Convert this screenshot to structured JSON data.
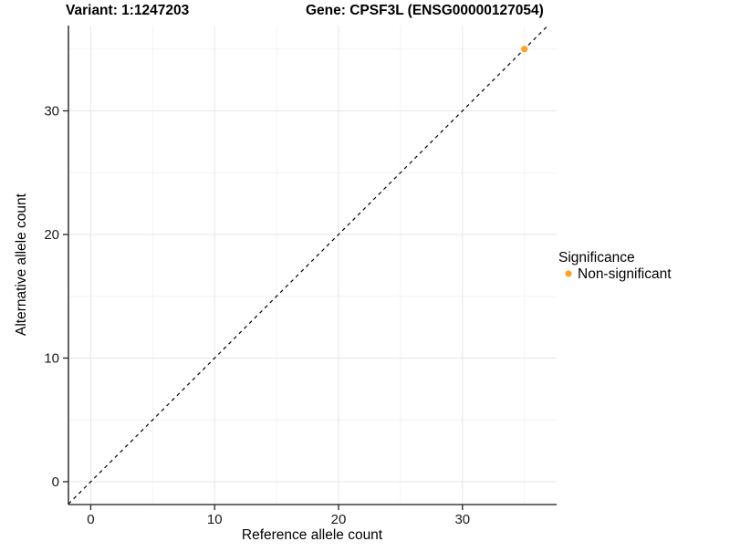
{
  "chart_data": {
    "type": "scatter",
    "title_left": "Variant: 1:1247203",
    "title_right": "Gene: CPSF3L (ENSG00000127054)",
    "xlabel": "Reference allele count",
    "ylabel": "Alternative allele count",
    "xlim": [
      -1.8,
      37.6
    ],
    "ylim": [
      -1.85,
      36.9
    ],
    "xticks": [
      0,
      10,
      20,
      30
    ],
    "yticks": [
      0,
      10,
      20,
      30
    ],
    "xminor": [
      5,
      15,
      25,
      35
    ],
    "yminor": [
      5,
      15,
      25,
      35
    ],
    "grid": "major and minor gridlines, white panel",
    "identity_line": {
      "equation": "y = x",
      "style": "dashed",
      "color": "#000000"
    },
    "series": [
      {
        "name": "Non-significant",
        "color": "#FFA320",
        "points": [
          [
            35,
            35
          ]
        ]
      }
    ],
    "legend": {
      "title": "Significance",
      "position": "right",
      "items": [
        {
          "label": "Non-significant",
          "color": "#FFA320"
        }
      ]
    }
  },
  "colors": {
    "background": "#ffffff",
    "axis_line": "#3d3d3d",
    "tick": "#333333",
    "grid_major": "#e6e6e6",
    "grid_minor": "#f3f3f3",
    "text": "#000000"
  }
}
